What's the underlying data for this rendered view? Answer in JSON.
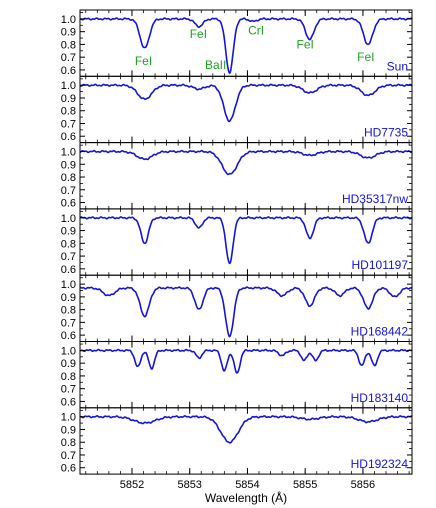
{
  "chart_data": {
    "type": "line",
    "xlabel": "Wavelength (Å)",
    "xlim": [
      5851.1,
      5856.85
    ],
    "x_ticks": [
      5852,
      5853,
      5854,
      5855,
      5856
    ],
    "y_ticks": [
      0.6,
      0.7,
      0.8,
      0.9,
      1.0
    ],
    "line_color": "#1414d8",
    "label_color_lines": "#22a022",
    "line_ids": [
      {
        "text": "FeI",
        "x": 5852.2,
        "y": 0.67
      },
      {
        "text": "FeI",
        "x": 5853.15,
        "y": 0.88
      },
      {
        "text": "BaII",
        "x": 5853.45,
        "y": 0.64
      },
      {
        "text": "CrI",
        "x": 5854.15,
        "y": 0.91
      },
      {
        "text": "FeI",
        "x": 5855.0,
        "y": 0.8
      },
      {
        "text": "FeI",
        "x": 5856.05,
        "y": 0.7
      }
    ],
    "panels": [
      {
        "name": "Sun",
        "ylim": [
          0.55,
          1.07
        ],
        "continuum": 1.0,
        "lines": [
          {
            "c": 5852.22,
            "d": 0.23,
            "w": 0.08
          },
          {
            "c": 5853.16,
            "d": 0.06,
            "w": 0.07
          },
          {
            "c": 5853.69,
            "d": 0.42,
            "w": 0.065
          },
          {
            "c": 5855.08,
            "d": 0.16,
            "w": 0.075
          },
          {
            "c": 5856.09,
            "d": 0.2,
            "w": 0.08
          },
          {
            "c": 5854.1,
            "d": 0.02,
            "w": 0.06
          }
        ]
      },
      {
        "name": "HD7735",
        "ylim": [
          0.55,
          1.07
        ],
        "continuum": 1.0,
        "lines": [
          {
            "c": 5852.22,
            "d": 0.11,
            "w": 0.12
          },
          {
            "c": 5853.16,
            "d": 0.03,
            "w": 0.1
          },
          {
            "c": 5853.69,
            "d": 0.28,
            "w": 0.1
          },
          {
            "c": 5855.08,
            "d": 0.06,
            "w": 0.12
          },
          {
            "c": 5856.09,
            "d": 0.08,
            "w": 0.12
          }
        ]
      },
      {
        "name": "HD35317nw",
        "ylim": [
          0.55,
          1.07
        ],
        "continuum": 1.0,
        "lines": [
          {
            "c": 5852.22,
            "d": 0.06,
            "w": 0.13
          },
          {
            "c": 5853.69,
            "d": 0.18,
            "w": 0.13
          },
          {
            "c": 5855.08,
            "d": 0.03,
            "w": 0.12
          },
          {
            "c": 5856.09,
            "d": 0.05,
            "w": 0.13
          }
        ]
      },
      {
        "name": "HD101197",
        "ylim": [
          0.55,
          1.07
        ],
        "continuum": 1.0,
        "lines": [
          {
            "c": 5852.22,
            "d": 0.2,
            "w": 0.065
          },
          {
            "c": 5853.16,
            "d": 0.08,
            "w": 0.06
          },
          {
            "c": 5853.69,
            "d": 0.36,
            "w": 0.06
          },
          {
            "c": 5855.08,
            "d": 0.16,
            "w": 0.065
          },
          {
            "c": 5856.09,
            "d": 0.2,
            "w": 0.07
          }
        ]
      },
      {
        "name": "HD168442",
        "ylim": [
          0.55,
          1.07
        ],
        "continuum": 0.97,
        "lines": [
          {
            "c": 5851.6,
            "d": 0.06,
            "w": 0.1
          },
          {
            "c": 5852.22,
            "d": 0.22,
            "w": 0.08
          },
          {
            "c": 5853.16,
            "d": 0.17,
            "w": 0.07
          },
          {
            "c": 5853.69,
            "d": 0.38,
            "w": 0.07
          },
          {
            "c": 5854.6,
            "d": 0.06,
            "w": 0.09
          },
          {
            "c": 5855.08,
            "d": 0.14,
            "w": 0.08
          },
          {
            "c": 5855.6,
            "d": 0.06,
            "w": 0.08
          },
          {
            "c": 5856.09,
            "d": 0.16,
            "w": 0.08
          },
          {
            "c": 5856.55,
            "d": 0.07,
            "w": 0.08
          }
        ]
      },
      {
        "name": "HD183140",
        "ylim": [
          0.55,
          1.07
        ],
        "continuum": 1.0,
        "lines": [
          {
            "c": 5852.1,
            "d": 0.13,
            "w": 0.05
          },
          {
            "c": 5852.34,
            "d": 0.14,
            "w": 0.05
          },
          {
            "c": 5853.16,
            "d": 0.06,
            "w": 0.05
          },
          {
            "c": 5853.6,
            "d": 0.16,
            "w": 0.05
          },
          {
            "c": 5853.82,
            "d": 0.18,
            "w": 0.05
          },
          {
            "c": 5854.6,
            "d": 0.04,
            "w": 0.06
          },
          {
            "c": 5854.98,
            "d": 0.08,
            "w": 0.05
          },
          {
            "c": 5855.18,
            "d": 0.08,
            "w": 0.05
          },
          {
            "c": 5855.98,
            "d": 0.12,
            "w": 0.05
          },
          {
            "c": 5856.2,
            "d": 0.12,
            "w": 0.05
          }
        ]
      },
      {
        "name": "HD192324",
        "ylim": [
          0.55,
          1.07
        ],
        "continuum": 1.0,
        "lines": [
          {
            "c": 5852.22,
            "d": 0.05,
            "w": 0.18
          },
          {
            "c": 5853.69,
            "d": 0.2,
            "w": 0.15
          },
          {
            "c": 5855.08,
            "d": 0.02,
            "w": 0.15
          },
          {
            "c": 5856.09,
            "d": 0.04,
            "w": 0.16
          }
        ]
      }
    ]
  }
}
